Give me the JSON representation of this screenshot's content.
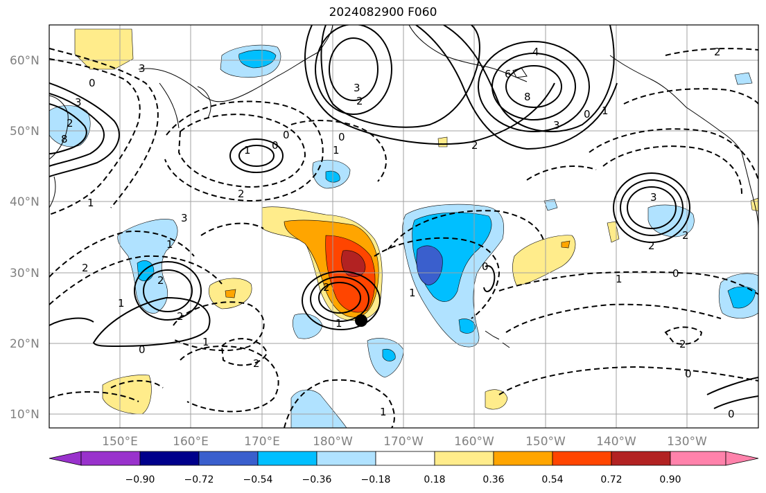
{
  "title": "2024082900 F060",
  "map": {
    "lat_labels": [
      "60°N",
      "50°N",
      "40°N",
      "30°N",
      "20°N",
      "10°N"
    ],
    "lon_labels": [
      "150°E",
      "160°E",
      "170°E",
      "180°W",
      "170°W",
      "160°W",
      "150°W",
      "140°W",
      "130°W"
    ],
    "contour_labels": [
      "0",
      "3",
      "2",
      "8",
      "1",
      "0",
      "1",
      "2",
      "3",
      "1",
      "2",
      "3",
      "0",
      "0",
      "1",
      "2",
      "3",
      "2",
      "1",
      "2",
      "0",
      "1",
      "2",
      "1",
      "2",
      "2",
      "3",
      "4",
      "6",
      "8",
      "1",
      "0",
      "3",
      "2",
      "1",
      "0",
      "2",
      "2",
      "1",
      "0",
      "1",
      "0",
      "2",
      "0"
    ],
    "storm_marker": "black-dot",
    "land_outline_color": "#000000",
    "grid_color": "#a0a0a0"
  },
  "colorbar": {
    "ticks": [
      "−0.90",
      "−0.72",
      "−0.54",
      "−0.36",
      "−0.18",
      "0.18",
      "0.36",
      "0.54",
      "0.72",
      "0.90"
    ],
    "colors": [
      "#9932cc",
      "#00008b",
      "#3a5fcd",
      "#00bfff",
      "#b0e2ff",
      "#ffffff",
      "#ffec8b",
      "#ffa500",
      "#ff4500",
      "#b22222",
      "#ff82ab"
    ]
  }
}
